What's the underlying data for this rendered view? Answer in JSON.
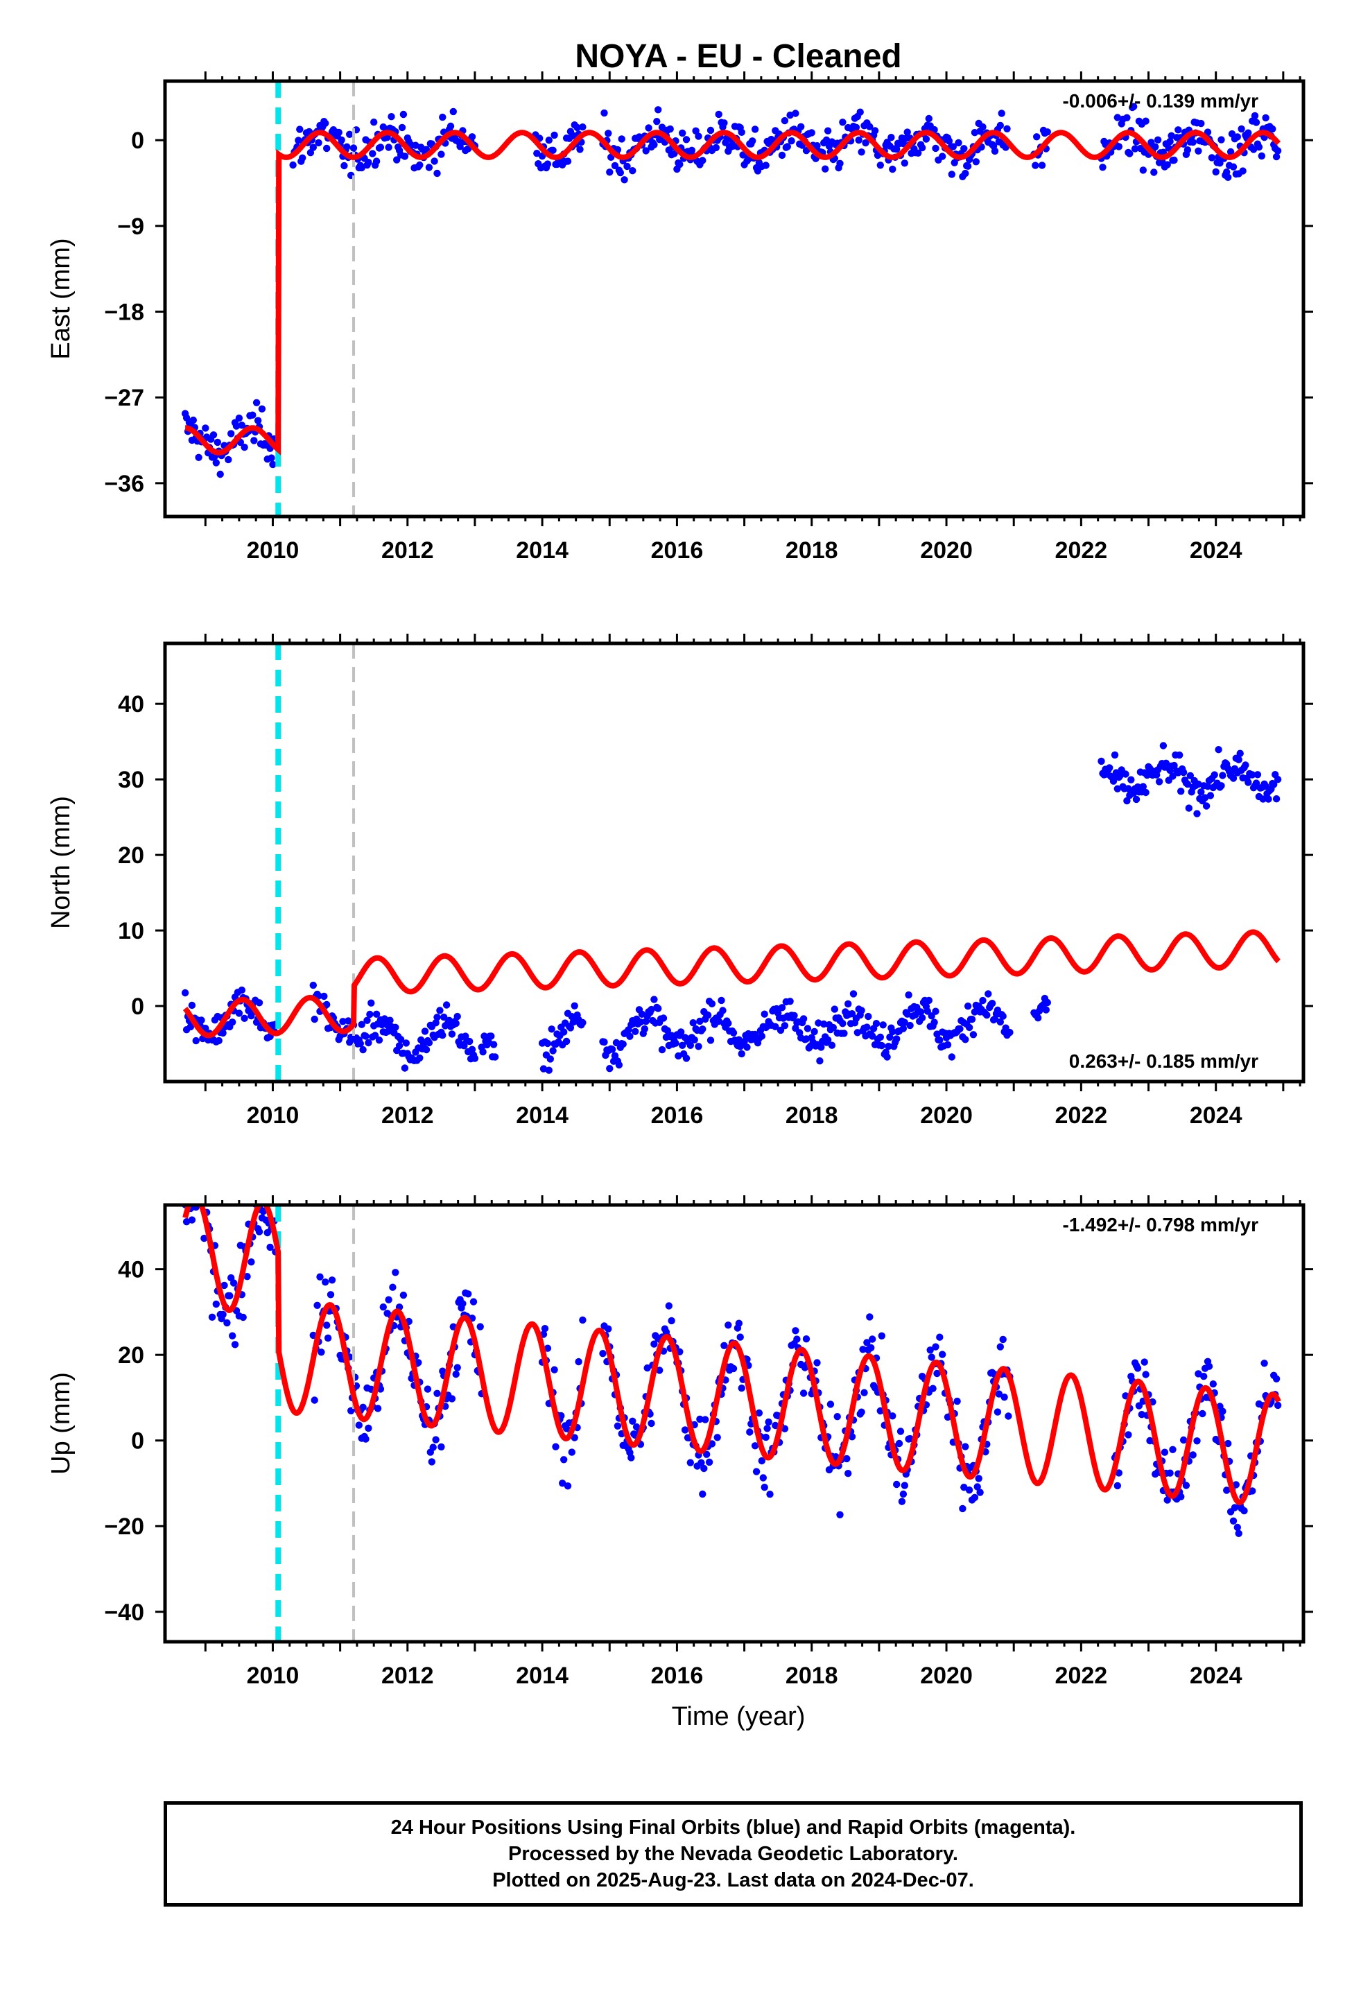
{
  "title": "NOYA  - EU - Cleaned",
  "xlabel": "Time (year)",
  "caption": [
    "24 Hour Positions Using Final Orbits (blue) and Rapid Orbits (magenta).",
    "Processed by the Nevada Geodetic Laboratory.",
    "Plotted on 2025-Aug-23. Last data on 2024-Dec-07."
  ],
  "colors": {
    "points": "#0000ff",
    "model": "#ff0000",
    "equipment_change": "#00e5ee",
    "other_event": "#c0c0c0"
  },
  "events": {
    "equipment_change_year": 2010.08,
    "other_event_year": 2011.2
  },
  "chart_data": [
    {
      "type": "scatter",
      "panel": "east",
      "ylabel": "East (mm)",
      "rate": "-0.006+/- 0.139 mm/yr",
      "rate_position": "top-right",
      "xlim": [
        2008.4,
        2025.3
      ],
      "ylim": [
        -39.5,
        6.2
      ],
      "xticks": [
        2010,
        2012,
        2014,
        2016,
        2018,
        2020,
        2022,
        2024
      ],
      "yticks": [
        0,
        -9,
        -18,
        -27,
        -36
      ],
      "data_spans": [
        [
          2008.7,
          2010.05
        ],
        [
          2010.3,
          2013.0
        ],
        [
          2013.9,
          2014.6
        ],
        [
          2014.9,
          2020.9
        ],
        [
          2021.3,
          2021.5
        ],
        [
          2022.3,
          2024.93
        ]
      ],
      "model": {
        "offsets": [
          {
            "year": 2008.7,
            "level": -31.5
          },
          {
            "year": 2010.08,
            "level": -0.5
          }
        ],
        "seasonal_amplitude": 1.3,
        "phase_year": 0.45
      }
    },
    {
      "type": "scatter",
      "panel": "north",
      "ylabel": "North (mm)",
      "rate": "0.263+/- 0.185 mm/yr",
      "rate_position": "bottom-right",
      "xlim": [
        2008.4,
        2025.3
      ],
      "ylim": [
        -10,
        48
      ],
      "xticks": [
        2010,
        2012,
        2014,
        2016,
        2018,
        2020,
        2022,
        2024
      ],
      "yticks": [
        0,
        10,
        20,
        30,
        40
      ],
      "data_spans": [
        [
          2008.7,
          2010.05
        ],
        [
          2010.6,
          2013.0
        ],
        [
          2013.1,
          2013.3
        ],
        [
          2014.0,
          2014.6
        ],
        [
          2014.9,
          2020.95
        ],
        [
          2021.3,
          2021.5
        ],
        [
          2022.3,
          2024.93
        ]
      ],
      "model": {
        "offsets": [
          {
            "year": 2008.7,
            "level": 0.5
          },
          {
            "year": 2011.2,
            "level": 5.5
          }
        ],
        "trend_mm_per_yr": 0.263,
        "seasonal_amplitude": 2.3,
        "phase_year": 0.3
      },
      "point_offset_after_2022": 30
    },
    {
      "type": "scatter",
      "panel": "up",
      "ylabel": "Up (mm)",
      "rate": "-1.492+/- 0.798 mm/yr",
      "rate_position": "top-right",
      "xlim": [
        2008.4,
        2025.3
      ],
      "ylim": [
        -47,
        55
      ],
      "xticks": [
        2010,
        2012,
        2014,
        2016,
        2018,
        2020,
        2022,
        2024
      ],
      "yticks": [
        40,
        20,
        0,
        -20,
        -40
      ],
      "data_spans": [
        [
          2008.7,
          2010.05
        ],
        [
          2010.6,
          2013.1
        ],
        [
          2014.0,
          2014.6
        ],
        [
          2014.9,
          2020.95
        ],
        [
          2022.5,
          2024.93
        ]
      ],
      "model": {
        "offsets": [
          {
            "year": 2008.7,
            "level": 32
          },
          {
            "year": 2010.08,
            "level": 9.5
          }
        ],
        "trend_mm_per_yr": -1.492,
        "seasonal_amplitude": 13,
        "phase_year": 0.6
      }
    }
  ]
}
